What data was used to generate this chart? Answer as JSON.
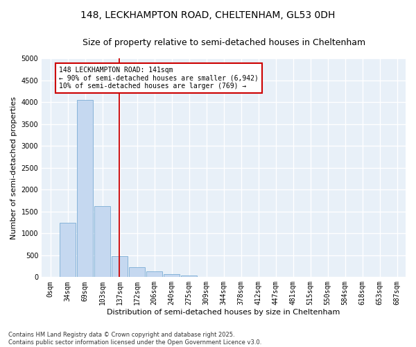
{
  "title1": "148, LECKHAMPTON ROAD, CHELTENHAM, GL53 0DH",
  "title2": "Size of property relative to semi-detached houses in Cheltenham",
  "xlabel": "Distribution of semi-detached houses by size in Cheltenham",
  "ylabel": "Number of semi-detached properties",
  "categories": [
    "0sqm",
    "34sqm",
    "69sqm",
    "103sqm",
    "137sqm",
    "172sqm",
    "206sqm",
    "240sqm",
    "275sqm",
    "309sqm",
    "344sqm",
    "378sqm",
    "412sqm",
    "447sqm",
    "481sqm",
    "515sqm",
    "550sqm",
    "584sqm",
    "618sqm",
    "653sqm",
    "687sqm"
  ],
  "values": [
    0,
    1250,
    4050,
    1620,
    480,
    220,
    130,
    75,
    30,
    0,
    0,
    0,
    0,
    0,
    0,
    0,
    0,
    0,
    0,
    0,
    0
  ],
  "bar_color": "#c5d8f0",
  "bar_edge_color": "#7aadd4",
  "vline_color": "#cc0000",
  "annotation_text": "148 LECKHAMPTON ROAD: 141sqm\n← 90% of semi-detached houses are smaller (6,942)\n10% of semi-detached houses are larger (769) →",
  "annotation_box_facecolor": "#ffffff",
  "annotation_box_edgecolor": "#cc0000",
  "ylim": [
    0,
    5000
  ],
  "yticks": [
    0,
    500,
    1000,
    1500,
    2000,
    2500,
    3000,
    3500,
    4000,
    4500,
    5000
  ],
  "footnote": "Contains HM Land Registry data © Crown copyright and database right 2025.\nContains public sector information licensed under the Open Government Licence v3.0.",
  "bg_color": "#ffffff",
  "grid_color": "#d0dce8",
  "title1_fontsize": 10,
  "title2_fontsize": 9,
  "ylabel_fontsize": 8,
  "xlabel_fontsize": 8,
  "tick_fontsize": 7,
  "footnote_fontsize": 6,
  "annot_fontsize": 7
}
